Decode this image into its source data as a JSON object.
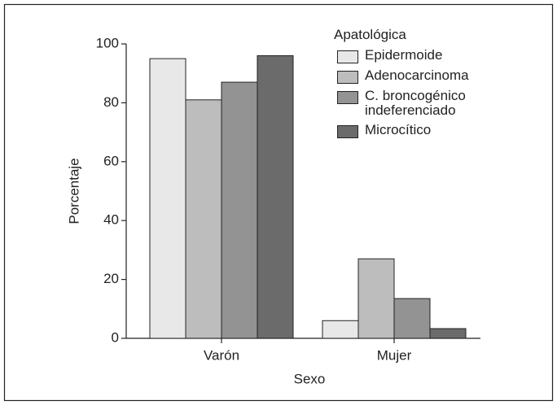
{
  "chart_data": {
    "type": "bar",
    "x_label": "Sexo",
    "y_label": "Porcentaje",
    "legend_title": "Apatológica",
    "categories": [
      "Varón",
      "Mujer"
    ],
    "series": [
      {
        "name": "Epidermoide",
        "color": "#e8e8e8",
        "values": [
          95,
          6
        ]
      },
      {
        "name": "Adenocarcinoma",
        "color": "#bdbdbd",
        "values": [
          81,
          27
        ]
      },
      {
        "name": "C. broncogénico indeferenciado",
        "color": "#939393",
        "values": [
          87,
          13.5
        ]
      },
      {
        "name": "Microcítico",
        "color": "#6b6b6b",
        "values": [
          96,
          3.3
        ]
      }
    ],
    "ylim": [
      0,
      100
    ],
    "yticks": [
      0,
      20,
      40,
      60,
      80,
      100
    ],
    "grid": false,
    "legend": "top-right"
  }
}
